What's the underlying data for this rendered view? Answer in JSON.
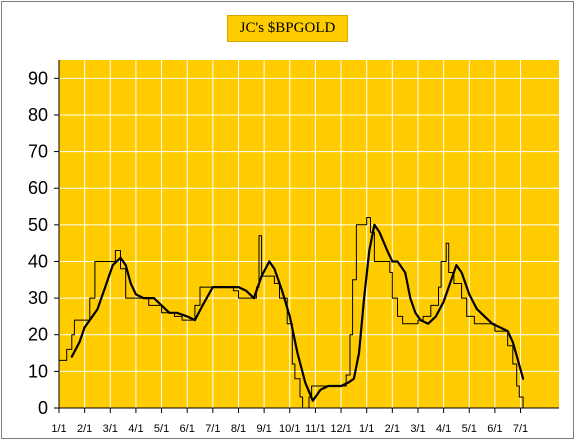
{
  "chart_data": {
    "type": "line",
    "title": "JC's $BPGOLD",
    "xlabel": "",
    "ylabel": "",
    "ylim": [
      0,
      95
    ],
    "yticks": [
      0,
      10,
      20,
      30,
      40,
      50,
      60,
      70,
      80,
      90
    ],
    "x_range": [
      0,
      19.5
    ],
    "x_tick_labels": [
      "1/1",
      "2/1",
      "3/1",
      "4/1",
      "5/1",
      "6/1",
      "7/1",
      "8/1",
      "9/1",
      "10/1",
      "11/1",
      "12/1",
      "1/1",
      "2/1",
      "3/1",
      "4/1",
      "5/1",
      "6/1",
      "7/1"
    ],
    "grid": true,
    "legend": "none",
    "colors": {
      "background": "#ffcc00",
      "grid": "#ffffff",
      "line": "#000000"
    },
    "series": [
      {
        "style": "thin-step",
        "points": [
          [
            0.0,
            13
          ],
          [
            0.3,
            13
          ],
          [
            0.3,
            16
          ],
          [
            0.5,
            16
          ],
          [
            0.5,
            20
          ],
          [
            0.6,
            20
          ],
          [
            0.6,
            24
          ],
          [
            1.2,
            24
          ],
          [
            1.2,
            30
          ],
          [
            1.4,
            30
          ],
          [
            1.4,
            40
          ],
          [
            2.2,
            40
          ],
          [
            2.2,
            43
          ],
          [
            2.4,
            43
          ],
          [
            2.4,
            38
          ],
          [
            2.6,
            38
          ],
          [
            2.6,
            30
          ],
          [
            3.5,
            30
          ],
          [
            3.5,
            28
          ],
          [
            4.0,
            28
          ],
          [
            4.0,
            26
          ],
          [
            4.5,
            26
          ],
          [
            4.5,
            25
          ],
          [
            4.8,
            25
          ],
          [
            4.8,
            24
          ],
          [
            5.3,
            24
          ],
          [
            5.3,
            28
          ],
          [
            5.5,
            28
          ],
          [
            5.5,
            33
          ],
          [
            6.8,
            33
          ],
          [
            6.8,
            32
          ],
          [
            7.0,
            32
          ],
          [
            7.0,
            30
          ],
          [
            7.7,
            30
          ],
          [
            7.7,
            33
          ],
          [
            7.8,
            33
          ],
          [
            7.8,
            47
          ],
          [
            7.9,
            47
          ],
          [
            7.9,
            36
          ],
          [
            8.4,
            36
          ],
          [
            8.4,
            34
          ],
          [
            8.6,
            34
          ],
          [
            8.6,
            30
          ],
          [
            8.9,
            30
          ],
          [
            8.9,
            23
          ],
          [
            9.1,
            23
          ],
          [
            9.1,
            12
          ],
          [
            9.2,
            12
          ],
          [
            9.2,
            8
          ],
          [
            9.4,
            8
          ],
          [
            9.4,
            3
          ],
          [
            9.5,
            3
          ],
          [
            9.5,
            0
          ],
          [
            9.75,
            0
          ],
          [
            9.75,
            3
          ],
          [
            9.85,
            3
          ],
          [
            9.85,
            6
          ],
          [
            11.2,
            6
          ],
          [
            11.2,
            9
          ],
          [
            11.35,
            9
          ],
          [
            11.35,
            20
          ],
          [
            11.45,
            20
          ],
          [
            11.45,
            35
          ],
          [
            11.6,
            35
          ],
          [
            11.6,
            50
          ],
          [
            12.0,
            50
          ],
          [
            12.0,
            52
          ],
          [
            12.15,
            52
          ],
          [
            12.15,
            48
          ],
          [
            12.3,
            48
          ],
          [
            12.3,
            40
          ],
          [
            12.9,
            40
          ],
          [
            12.9,
            37
          ],
          [
            13.0,
            37
          ],
          [
            13.0,
            30
          ],
          [
            13.2,
            30
          ],
          [
            13.2,
            25
          ],
          [
            13.4,
            25
          ],
          [
            13.4,
            23
          ],
          [
            14.0,
            23
          ],
          [
            14.0,
            24
          ],
          [
            14.2,
            24
          ],
          [
            14.2,
            25
          ],
          [
            14.5,
            25
          ],
          [
            14.5,
            28
          ],
          [
            14.8,
            28
          ],
          [
            14.8,
            33
          ],
          [
            14.9,
            33
          ],
          [
            14.9,
            40
          ],
          [
            15.1,
            40
          ],
          [
            15.1,
            45
          ],
          [
            15.2,
            45
          ],
          [
            15.2,
            37
          ],
          [
            15.4,
            37
          ],
          [
            15.4,
            34
          ],
          [
            15.7,
            34
          ],
          [
            15.7,
            30
          ],
          [
            15.9,
            30
          ],
          [
            15.9,
            25
          ],
          [
            16.2,
            25
          ],
          [
            16.2,
            23
          ],
          [
            17.0,
            23
          ],
          [
            17.0,
            21
          ],
          [
            17.5,
            21
          ],
          [
            17.5,
            17
          ],
          [
            17.7,
            17
          ],
          [
            17.7,
            12
          ],
          [
            17.85,
            12
          ],
          [
            17.85,
            6
          ],
          [
            17.95,
            6
          ],
          [
            17.95,
            3
          ],
          [
            18.1,
            3
          ],
          [
            18.1,
            0
          ]
        ]
      },
      {
        "style": "smooth-average",
        "points": [
          [
            0.5,
            14
          ],
          [
            0.8,
            18
          ],
          [
            1.0,
            22
          ],
          [
            1.2,
            24
          ],
          [
            1.5,
            27
          ],
          [
            1.8,
            33
          ],
          [
            2.1,
            39
          ],
          [
            2.4,
            41
          ],
          [
            2.6,
            39
          ],
          [
            2.8,
            34
          ],
          [
            3.0,
            31
          ],
          [
            3.3,
            30
          ],
          [
            3.7,
            30
          ],
          [
            4.0,
            28
          ],
          [
            4.3,
            26
          ],
          [
            4.6,
            26
          ],
          [
            5.0,
            25
          ],
          [
            5.3,
            24
          ],
          [
            5.6,
            28
          ],
          [
            6.0,
            33
          ],
          [
            6.5,
            33
          ],
          [
            7.0,
            33
          ],
          [
            7.3,
            32
          ],
          [
            7.6,
            30
          ],
          [
            7.9,
            36
          ],
          [
            8.2,
            40
          ],
          [
            8.4,
            38
          ],
          [
            8.7,
            32
          ],
          [
            9.0,
            25
          ],
          [
            9.3,
            15
          ],
          [
            9.6,
            7
          ],
          [
            9.9,
            2
          ],
          [
            10.2,
            5
          ],
          [
            10.5,
            6
          ],
          [
            11.0,
            6
          ],
          [
            11.3,
            7
          ],
          [
            11.5,
            8
          ],
          [
            11.7,
            15
          ],
          [
            11.9,
            30
          ],
          [
            12.1,
            43
          ],
          [
            12.3,
            50
          ],
          [
            12.5,
            48
          ],
          [
            12.8,
            43
          ],
          [
            13.0,
            40
          ],
          [
            13.2,
            40
          ],
          [
            13.5,
            37
          ],
          [
            13.7,
            30
          ],
          [
            13.9,
            26
          ],
          [
            14.1,
            24
          ],
          [
            14.4,
            23
          ],
          [
            14.7,
            25
          ],
          [
            15.0,
            29
          ],
          [
            15.3,
            35
          ],
          [
            15.5,
            39
          ],
          [
            15.7,
            37
          ],
          [
            16.0,
            31
          ],
          [
            16.3,
            27
          ],
          [
            16.6,
            25
          ],
          [
            16.9,
            23
          ],
          [
            17.2,
            22
          ],
          [
            17.5,
            21
          ],
          [
            17.7,
            18
          ],
          [
            17.9,
            13
          ],
          [
            18.1,
            8
          ]
        ]
      }
    ]
  }
}
